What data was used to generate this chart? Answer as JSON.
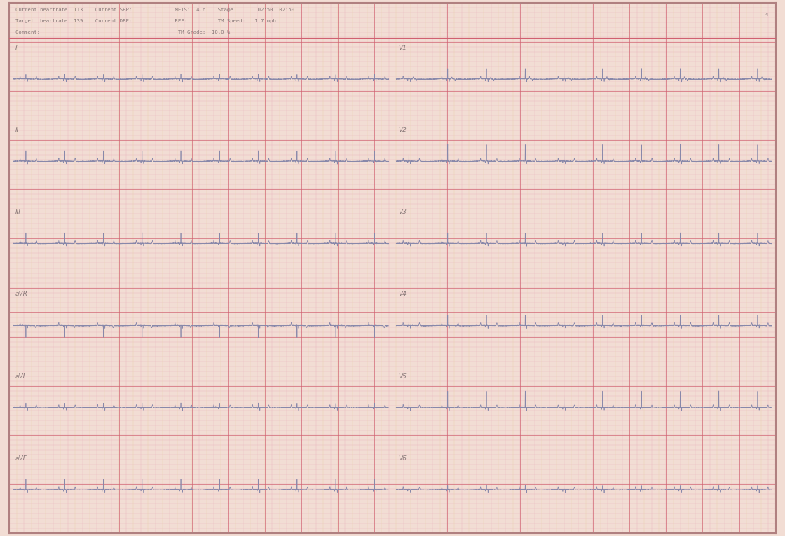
{
  "bg_color": "#f2ddd4",
  "minor_color_pink": "#e8a8b8",
  "minor_color_yellow": "#e8d0a0",
  "major_color": "#d06070",
  "ecg_color": "#8888aa",
  "text_color": "#887878",
  "border_color": "#b08080",
  "header_line1": "Current heartrate: 113    Current SBP:              METS:  4.6    Stage    1   02:50  02:50",
  "header_line2": "Target  heartrate: 139    Current DBP:              RPE:          TM Speed:   1.7 mph",
  "header_line3": "Comment:                                             TM Grade:  10.0 %",
  "figwidth": 11.2,
  "figheight": 7.65,
  "dpi": 100
}
